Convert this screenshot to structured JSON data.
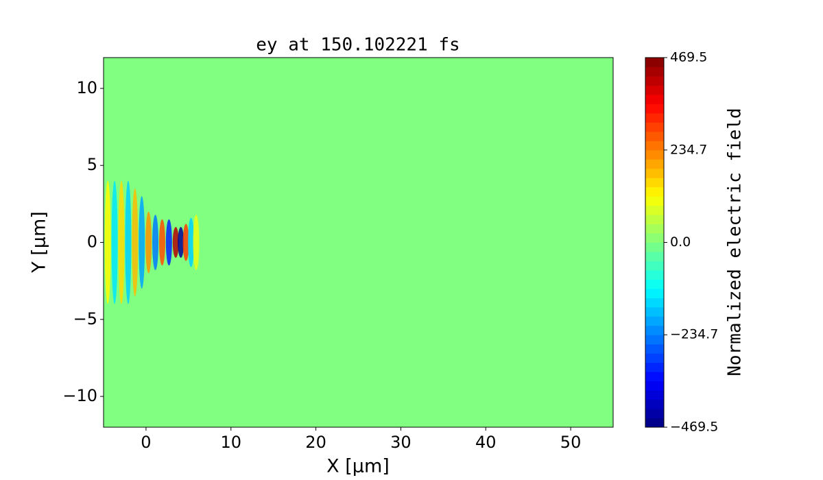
{
  "chart_data": {
    "type": "heatmap",
    "title": "ey at 150.102221 fs",
    "xlabel": "X [μm]",
    "ylabel": "Y [μm]",
    "colorbar_label": "Normalized electric field",
    "colormap": "jet",
    "xlim": [
      -5,
      55
    ],
    "ylim": [
      -12,
      12
    ],
    "xticks": [
      0,
      10,
      20,
      30,
      40,
      50
    ],
    "yticks": [
      {
        "value": -10,
        "label": "−10"
      },
      {
        "value": -5,
        "label": "−5"
      },
      0,
      5,
      10
    ],
    "clim": [
      -469.5,
      469.5
    ],
    "cticks": [
      {
        "value": -469.5,
        "label": "−469.5"
      },
      {
        "value": -234.7,
        "label": "−234.7"
      },
      {
        "value": 0,
        "label": "0.0"
      },
      234.7,
      469.5
    ],
    "blobs": {
      "x": [
        -4.5,
        -3.7,
        -2.9,
        -2.1,
        -1.3,
        -0.5,
        0.3,
        1.1,
        1.9,
        2.7,
        3.5,
        4.1,
        4.7,
        5.3,
        5.9
      ],
      "y": [
        0,
        0,
        0,
        0,
        0,
        0,
        0,
        0,
        0,
        0,
        0,
        0,
        0,
        0,
        0
      ],
      "values": [
        120,
        -140,
        150,
        -160,
        180,
        -200,
        220,
        -240,
        280,
        -320,
        420,
        -450,
        300,
        -160,
        100
      ],
      "extent": [
        4,
        4,
        4,
        4,
        3.5,
        3,
        2,
        1.8,
        1.5,
        1.5,
        1,
        1,
        1.2,
        1.6,
        1.8
      ]
    }
  }
}
